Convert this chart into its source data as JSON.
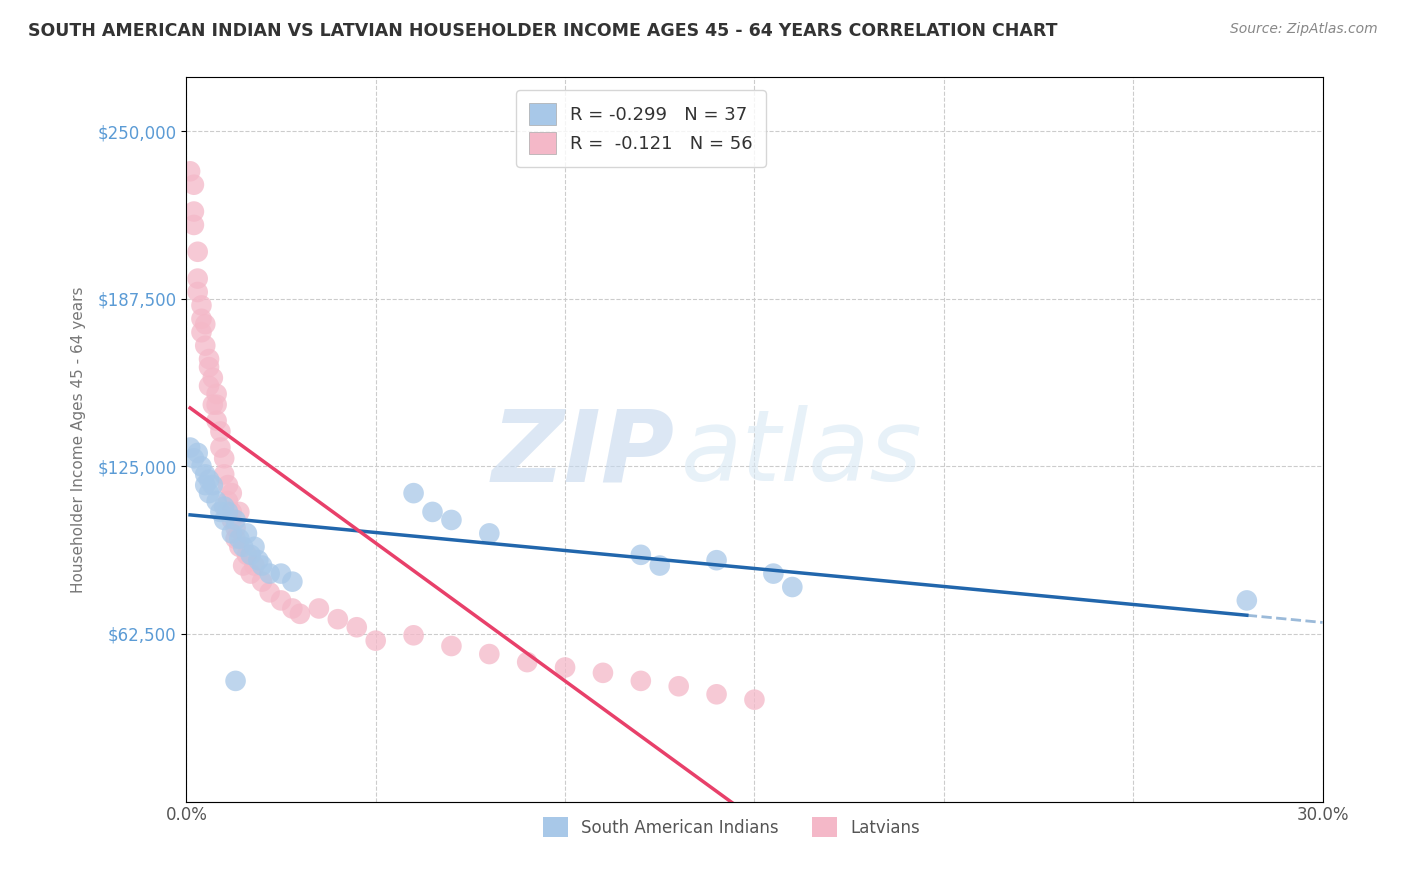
{
  "title": "SOUTH AMERICAN INDIAN VS LATVIAN HOUSEHOLDER INCOME AGES 45 - 64 YEARS CORRELATION CHART",
  "source": "Source: ZipAtlas.com",
  "ylabel": "Householder Income Ages 45 - 64 years",
  "xlim": [
    0.0,
    0.3
  ],
  "ylim": [
    0,
    270000
  ],
  "xticks": [
    0.0,
    0.05,
    0.1,
    0.15,
    0.2,
    0.25,
    0.3
  ],
  "xticklabels": [
    "0.0%",
    "",
    "",
    "",
    "",
    "",
    "30.0%"
  ],
  "yticks": [
    62500,
    125000,
    187500,
    250000
  ],
  "yticklabels": [
    "$62,500",
    "$125,000",
    "$187,500",
    "$250,000"
  ],
  "legend_r_blue": "-0.299",
  "legend_n_blue": "37",
  "legend_r_pink": "-0.121",
  "legend_n_pink": "56",
  "legend_label_blue": "South American Indians",
  "legend_label_pink": "Latvians",
  "blue_color": "#a8c8e8",
  "pink_color": "#f4b8c8",
  "blue_line_color": "#2166ac",
  "pink_line_color": "#e8406a",
  "watermark_zip": "ZIP",
  "watermark_atlas": "atlas",
  "blue_x": [
    0.001,
    0.002,
    0.003,
    0.004,
    0.005,
    0.005,
    0.006,
    0.006,
    0.007,
    0.008,
    0.009,
    0.01,
    0.01,
    0.011,
    0.012,
    0.013,
    0.014,
    0.015,
    0.016,
    0.017,
    0.018,
    0.019,
    0.02,
    0.022,
    0.025,
    0.028,
    0.06,
    0.065,
    0.07,
    0.08,
    0.12,
    0.125,
    0.14,
    0.155,
    0.16,
    0.28,
    0.013
  ],
  "blue_y": [
    132000,
    128000,
    130000,
    125000,
    118000,
    122000,
    115000,
    120000,
    118000,
    112000,
    108000,
    110000,
    105000,
    108000,
    100000,
    105000,
    98000,
    95000,
    100000,
    92000,
    95000,
    90000,
    88000,
    85000,
    85000,
    82000,
    115000,
    108000,
    105000,
    100000,
    92000,
    88000,
    90000,
    85000,
    80000,
    75000,
    45000
  ],
  "pink_x": [
    0.001,
    0.002,
    0.002,
    0.003,
    0.003,
    0.004,
    0.005,
    0.005,
    0.006,
    0.006,
    0.007,
    0.007,
    0.008,
    0.008,
    0.009,
    0.009,
    0.01,
    0.01,
    0.011,
    0.011,
    0.012,
    0.012,
    0.013,
    0.013,
    0.014,
    0.015,
    0.016,
    0.017,
    0.018,
    0.02,
    0.022,
    0.025,
    0.028,
    0.03,
    0.035,
    0.04,
    0.045,
    0.05,
    0.06,
    0.07,
    0.08,
    0.09,
    0.1,
    0.11,
    0.12,
    0.13,
    0.14,
    0.15,
    0.003,
    0.004,
    0.002,
    0.004,
    0.006,
    0.008,
    0.012,
    0.014
  ],
  "pink_y": [
    235000,
    220000,
    215000,
    205000,
    195000,
    185000,
    178000,
    170000,
    162000,
    155000,
    148000,
    158000,
    142000,
    148000,
    138000,
    132000,
    128000,
    122000,
    118000,
    112000,
    108000,
    105000,
    102000,
    98000,
    95000,
    88000,
    92000,
    85000,
    88000,
    82000,
    78000,
    75000,
    72000,
    70000,
    72000,
    68000,
    65000,
    60000,
    62000,
    58000,
    55000,
    52000,
    50000,
    48000,
    45000,
    43000,
    40000,
    38000,
    190000,
    180000,
    230000,
    175000,
    165000,
    152000,
    115000,
    108000
  ]
}
